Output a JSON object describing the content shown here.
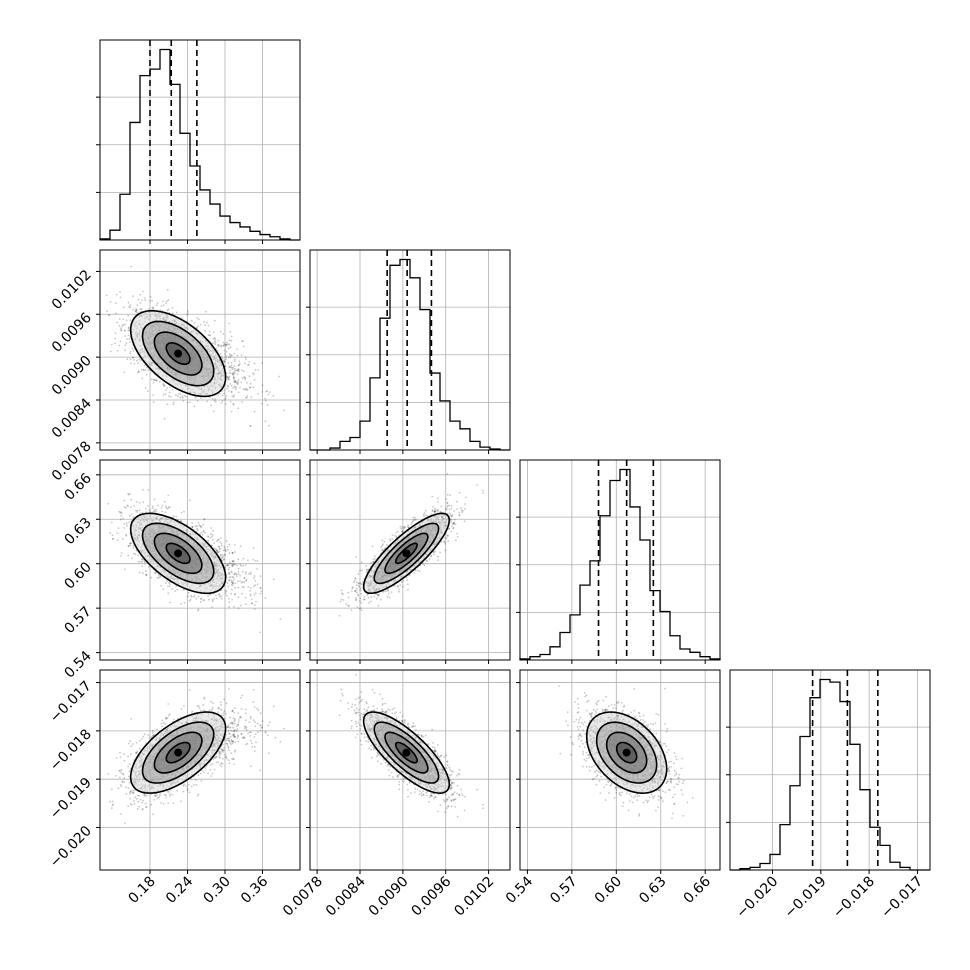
{
  "chart_data": {
    "type": "corner",
    "grid": true,
    "colors": {
      "line": "#000000",
      "points": "#b0b0b0",
      "grid": "#b0b0b0"
    },
    "parameters": [
      {
        "range": [
          0.1,
          0.42
        ],
        "ticks": [
          0.18,
          0.24,
          0.3,
          0.36
        ],
        "tick_labels": [
          "0.18",
          "0.24",
          "0.30",
          "0.36"
        ],
        "quantiles": [
          0.18,
          0.214,
          0.255
        ],
        "hist": {
          "edges": [
            0.1,
            0.116,
            0.132,
            0.148,
            0.164,
            0.18,
            0.196,
            0.212,
            0.228,
            0.244,
            0.26,
            0.276,
            0.292,
            0.308,
            0.324,
            0.34,
            0.356,
            0.372,
            0.388,
            0.404,
            0.42
          ],
          "counts": [
            1,
            9,
            42,
            108,
            151,
            157,
            175,
            143,
            98,
            68,
            46,
            33,
            22,
            16,
            12,
            8,
            5,
            3,
            1,
            0
          ]
        }
      },
      {
        "range": [
          0.0077,
          0.0105
        ],
        "ticks": [
          0.0078,
          0.0084,
          0.009,
          0.0096,
          0.0102
        ],
        "tick_labels": [
          "0.0078",
          "0.0084",
          "0.0090",
          "0.0096",
          "0.0102"
        ],
        "quantiles": [
          0.00878,
          0.00906,
          0.0094
        ],
        "hist": {
          "edges": [
            0.0077,
            0.00784,
            0.00798,
            0.00812,
            0.00826,
            0.0084,
            0.00854,
            0.00868,
            0.00882,
            0.00896,
            0.0091,
            0.00924,
            0.00938,
            0.00952,
            0.00966,
            0.0098,
            0.00994,
            0.01008,
            0.01022,
            0.01036,
            0.0105
          ],
          "counts": [
            0,
            0,
            2,
            9,
            13,
            30,
            75,
            137,
            192,
            198,
            179,
            146,
            80,
            51,
            30,
            22,
            9,
            3,
            1,
            0
          ]
        }
      },
      {
        "range": [
          0.535,
          0.67
        ],
        "ticks": [
          0.54,
          0.57,
          0.6,
          0.63,
          0.66
        ],
        "tick_labels": [
          "0.54",
          "0.57",
          "0.60",
          "0.63",
          "0.66"
        ],
        "quantiles": [
          0.588,
          0.607,
          0.625
        ],
        "hist": {
          "edges": [
            0.535,
            0.54175,
            0.5485,
            0.55525,
            0.562,
            0.56875,
            0.5755,
            0.58225,
            0.589,
            0.59575,
            0.6025,
            0.60925,
            0.616,
            0.62275,
            0.6295,
            0.63625,
            0.643,
            0.64975,
            0.6565,
            0.66325,
            0.67
          ],
          "counts": [
            1,
            3,
            5,
            12,
            25,
            41,
            68,
            90,
            131,
            163,
            173,
            139,
            109,
            63,
            44,
            22,
            10,
            7,
            3,
            1
          ]
        }
      },
      {
        "range": [
          -0.02088,
          -0.01674
        ],
        "ticks": [
          -0.02,
          -0.019,
          -0.018,
          -0.017
        ],
        "tick_labels": [
          "−0.020",
          "−0.019",
          "−0.018",
          "−0.017"
        ],
        "quantiles": [
          -0.01917,
          -0.01845,
          -0.01782
        ],
        "hist": {
          "edges": [
            -0.02088,
            -0.020673,
            -0.020466,
            -0.020259,
            -0.020052,
            -0.019845,
            -0.019638,
            -0.019431,
            -0.019224,
            -0.019017,
            -0.01881,
            -0.018603,
            -0.018396,
            -0.018189,
            -0.017982,
            -0.017775,
            -0.017568,
            -0.017361,
            -0.017154,
            -0.016947,
            -0.01674
          ],
          "counts": [
            0,
            1,
            2,
            5,
            12,
            35,
            65,
            103,
            133,
            147,
            145,
            130,
            97,
            62,
            33,
            19,
            6,
            2,
            0,
            0
          ]
        }
      }
    ],
    "pairs": [
      {
        "row": 1,
        "col": 0,
        "mean": [
          0.225,
          0.00905
        ],
        "sd": [
          0.038,
          0.0003
        ],
        "corr": -0.55
      },
      {
        "row": 2,
        "col": 0,
        "mean": [
          0.225,
          0.607
        ],
        "sd": [
          0.038,
          0.0135
        ],
        "corr": -0.6
      },
      {
        "row": 2,
        "col": 1,
        "mean": [
          0.00905,
          0.607
        ],
        "sd": [
          0.0003,
          0.0135
        ],
        "corr": 0.83
      },
      {
        "row": 3,
        "col": 0,
        "mean": [
          0.225,
          -0.01845
        ],
        "sd": [
          0.038,
          0.00042
        ],
        "corr": 0.6
      },
      {
        "row": 3,
        "col": 1,
        "mean": [
          0.00905,
          -0.01845
        ],
        "sd": [
          0.0003,
          0.00042
        ],
        "corr": -0.78
      },
      {
        "row": 3,
        "col": 2,
        "mean": [
          0.607,
          -0.01845
        ],
        "sd": [
          0.0135,
          0.00042
        ],
        "corr": -0.4
      }
    ],
    "contour_levels_sigma": [
      0.5,
      1.0,
      1.5,
      2.0
    ]
  }
}
